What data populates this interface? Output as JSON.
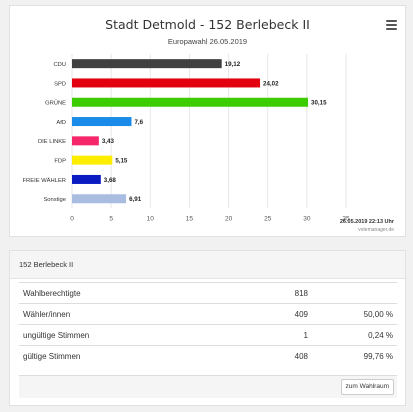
{
  "chart": {
    "title": "Stadt Detmold - 152 Berlebeck II",
    "subtitle": "Europawahl 26.05.2019",
    "timestamp": "26.05.2019 22:13 Uhr",
    "credit": "votemanager.de"
  },
  "chart_data": {
    "type": "bar",
    "orientation": "horizontal",
    "categories": [
      "CDU",
      "SPD",
      "GRÜNE",
      "AfD",
      "DIE LINKE",
      "FDP",
      "FREIE WÄHLER",
      "Sonstige"
    ],
    "values": [
      19.12,
      24.02,
      30.15,
      7.6,
      3.43,
      5.15,
      3.68,
      6.91
    ],
    "value_labels": [
      "19,12",
      "24,02",
      "30,15",
      "7,6",
      "3,43",
      "5,15",
      "3,68",
      "6,91"
    ],
    "colors": [
      "#404040",
      "#e3000f",
      "#3dcc00",
      "#1a8be8",
      "#f5276a",
      "#ffed00",
      "#0a1bc2",
      "#a8bde0"
    ],
    "xlim": [
      0,
      35
    ],
    "xticks": [
      0,
      5,
      10,
      15,
      20,
      25,
      30,
      35
    ],
    "grid": true,
    "title": "Stadt Detmold - 152 Berlebeck II",
    "subtitle": "Europawahl 26.05.2019"
  },
  "table": {
    "header": "152 Berlebeck II",
    "rows": [
      {
        "label": "Wahlberechtigte",
        "count": "818",
        "pct": ""
      },
      {
        "label": "Wähler/innen",
        "count": "409",
        "pct": "50,00 %"
      },
      {
        "label": "ungültige Stimmen",
        "count": "1",
        "pct": "0,24 %"
      },
      {
        "label": "gültige Stimmen",
        "count": "408",
        "pct": "99,76 %"
      }
    ],
    "button_label": "zum Wahlraum"
  },
  "icons": {
    "menu": "hamburger-menu-icon"
  }
}
